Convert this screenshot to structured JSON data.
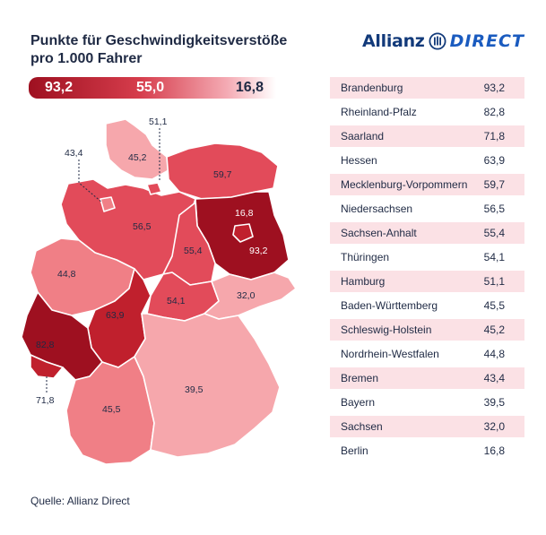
{
  "title": "Punkte für Geschwindigkeitsverstöße pro 1.000 Fahrer",
  "logo": {
    "word1": "Allianz",
    "word2": "DIRECT",
    "icon": "allianz-eagle-icon"
  },
  "scale": {
    "max": "93,2",
    "mid": "55,0",
    "min": "16,8"
  },
  "source": "Quelle: Allianz Direct",
  "colors": {
    "darkest": "#9e1020",
    "dark": "#c0202d",
    "mid": "#e24b5a",
    "light": "#f07f86",
    "lighter": "#f6a7ac",
    "row_pink": "#fbe1e5"
  },
  "table": [
    {
      "state": "Brandenburg",
      "value": "93,2"
    },
    {
      "state": "Rheinland-Pfalz",
      "value": "82,8"
    },
    {
      "state": "Saarland",
      "value": "71,8"
    },
    {
      "state": "Hessen",
      "value": "63,9"
    },
    {
      "state": "Mecklenburg-Vorpommern",
      "value": "59,7"
    },
    {
      "state": "Niedersachsen",
      "value": "56,5"
    },
    {
      "state": "Sachsen-Anhalt",
      "value": "55,4"
    },
    {
      "state": "Thüringen",
      "value": "54,1"
    },
    {
      "state": "Hamburg",
      "value": "51,1"
    },
    {
      "state": "Baden-Württemberg",
      "value": "45,5"
    },
    {
      "state": "Schleswig-Holstein",
      "value": "45,2"
    },
    {
      "state": "Nordrhein-Westfalen",
      "value": "44,8"
    },
    {
      "state": "Bremen",
      "value": "43,4"
    },
    {
      "state": "Bayern",
      "value": "39,5"
    },
    {
      "state": "Sachsen",
      "value": "32,0"
    },
    {
      "state": "Berlin",
      "value": "16,8"
    }
  ],
  "map_labels": {
    "sh": "45,2",
    "hh": "51,1",
    "hb": "43,4",
    "mv": "59,7",
    "ni": "56,5",
    "be": "16,8",
    "bb": "93,2",
    "st": "55,4",
    "nw": "44,8",
    "he": "63,9",
    "th": "54,1",
    "sn": "32,0",
    "rp": "82,8",
    "sl": "71,8",
    "bw": "45,5",
    "by": "39,5"
  }
}
